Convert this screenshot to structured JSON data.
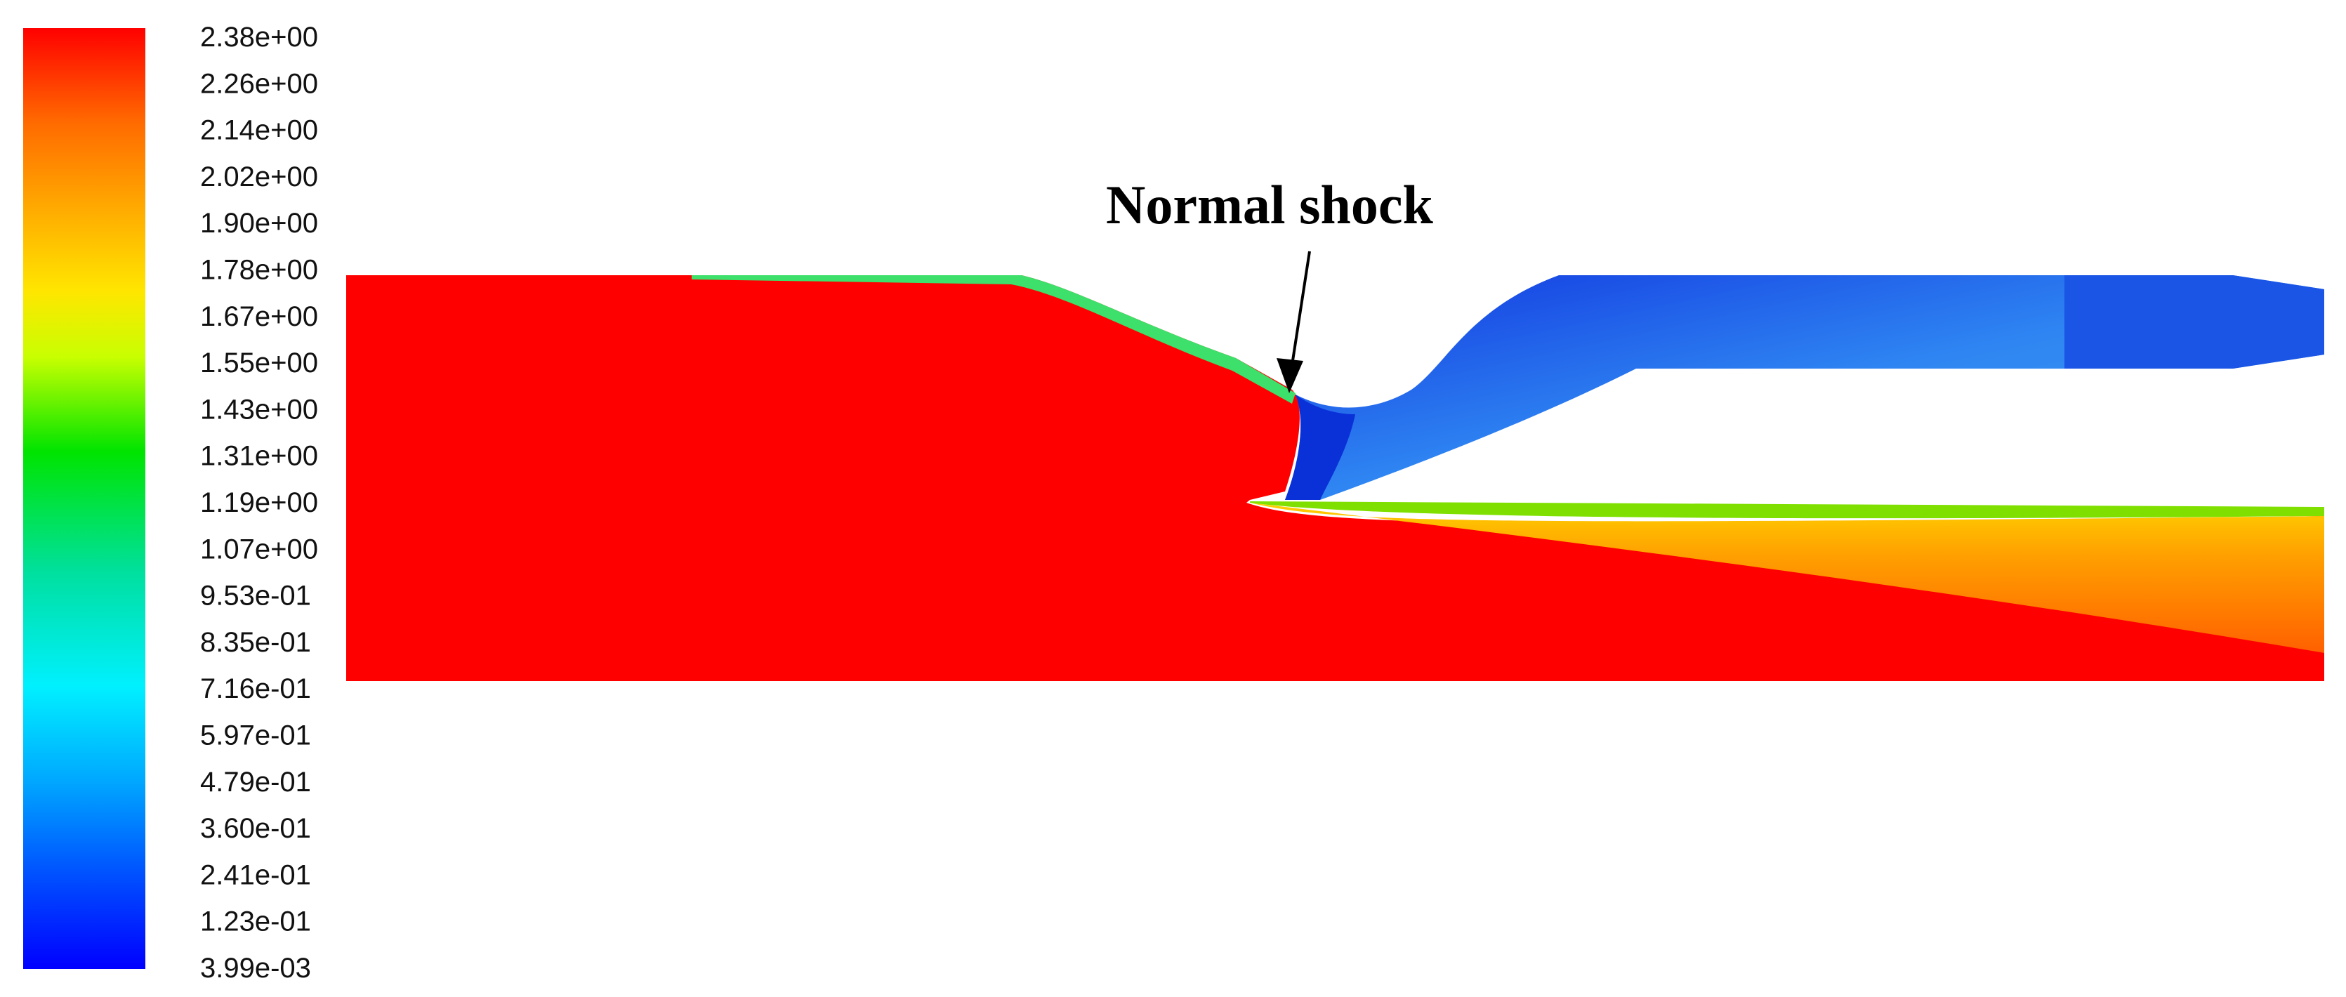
{
  "colorbar": {
    "ticks": [
      "2.38e+00",
      "2.26e+00",
      "2.14e+00",
      "2.02e+00",
      "1.90e+00",
      "1.78e+00",
      "1.67e+00",
      "1.55e+00",
      "1.43e+00",
      "1.31e+00",
      "1.19e+00",
      "1.07e+00",
      "9.53e-01",
      "8.35e-01",
      "7.16e-01",
      "5.97e-01",
      "4.79e-01",
      "3.60e-01",
      "2.41e-01",
      "1.23e-01",
      "3.99e-03"
    ],
    "range": [
      0.00399,
      2.38
    ],
    "colors": [
      "#ff0000",
      "#ff6a00",
      "#ffb000",
      "#ffe600",
      "#c8ff00",
      "#00e400",
      "#00e0a0",
      "#00f0ff",
      "#00a8ff",
      "#0050ff",
      "#0000ff"
    ]
  },
  "annotation": {
    "label": "Normal shock"
  },
  "flow_colors": {
    "supersonic": "#ff0000",
    "subsonic_low": "#0a4fe8",
    "subsonic_mid": "#1e90f0",
    "mixing": "#ffa500",
    "wall": "#000000"
  }
}
